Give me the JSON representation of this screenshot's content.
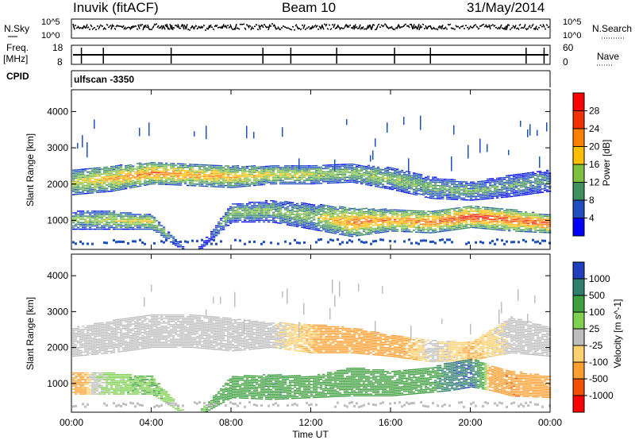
{
  "header": {
    "station": "Inuvik (fitACF)",
    "beam": "Beam 10",
    "date": "31/May/2014"
  },
  "noise_panel": {
    "left_label": "N.Sky",
    "left_ticks": [
      "10^5",
      "10^0"
    ],
    "right_label": "N.Search",
    "right_ticks": [
      "10^5",
      "10^0"
    ]
  },
  "freq_panel": {
    "left_label": "Freq.",
    "left_unit": "[MHz]",
    "left_ticks": [
      "18",
      "8"
    ],
    "right_label": "Nave",
    "right_ticks": [
      "60",
      "0"
    ]
  },
  "cpid": {
    "label": "CPID",
    "value": "ulfscan -3350"
  },
  "chart_data": [
    {
      "type": "heatmap",
      "name": "power",
      "ylabel": "Slant Range [km]",
      "ylim": [
        200,
        4600
      ],
      "yticks": [
        "1000",
        "2000",
        "3000",
        "4000"
      ],
      "colorbar": {
        "label": "Power [dB]",
        "ticks": [
          "28",
          "24",
          "20",
          "16",
          "12",
          "8",
          "4"
        ],
        "colors": [
          "#ff0000",
          "#f03000",
          "#ff7f00",
          "#ffbf00",
          "#7fbf3f",
          "#3f8f5f",
          "#1f4fbf",
          "#0000ff"
        ]
      },
      "bands": [
        {
          "t": [
            0,
            2,
            4,
            6,
            8,
            10,
            12,
            14,
            16,
            18,
            20,
            22,
            24
          ],
          "center_km": [
            2050,
            2150,
            2300,
            2250,
            2200,
            2250,
            2250,
            2300,
            2150,
            1900,
            1800,
            1950,
            2100
          ],
          "width_km": [
            350,
            350,
            300,
            300,
            300,
            250,
            250,
            250,
            300,
            300,
            250,
            300,
            300
          ],
          "level_db": [
            16,
            20,
            24,
            22,
            20,
            18,
            16,
            14,
            14,
            12,
            12,
            10,
            10
          ]
        },
        {
          "t": [
            0,
            2,
            4,
            6,
            8,
            10,
            12,
            14,
            16,
            18,
            20,
            22,
            24
          ],
          "center_km": [
            1000,
            1000,
            950,
            0,
            1200,
            1250,
            1100,
            950,
            1000,
            950,
            1100,
            1000,
            900
          ],
          "width_km": [
            250,
            250,
            200,
            0,
            250,
            300,
            350,
            400,
            300,
            300,
            300,
            300,
            250
          ],
          "level_db": [
            14,
            16,
            18,
            0,
            14,
            12,
            14,
            24,
            22,
            24,
            28,
            26,
            26
          ]
        }
      ]
    },
    {
      "type": "heatmap",
      "name": "velocity",
      "xlabel": "Time UT",
      "x_ticks": [
        "00:00",
        "04:00",
        "08:00",
        "12:00",
        "16:00",
        "20:00",
        "00:00"
      ],
      "ylabel": "Slant Range [km]",
      "ylim": [
        200,
        4600
      ],
      "yticks": [
        "1000",
        "2000",
        "3000",
        "4000"
      ],
      "colorbar": {
        "label": "Velocity [m s^-1]",
        "ticks": [
          "1000",
          "500",
          "100",
          "25",
          "-25",
          "-100",
          "-500",
          "-1000"
        ],
        "colors": [
          "#1f3fbf",
          "#2f7f6f",
          "#3fa03f",
          "#7fd050",
          "#bebebe",
          "#ffd070",
          "#ff9f30",
          "#f05000",
          "#ff0000"
        ]
      },
      "bands": [
        {
          "t": [
            0,
            2,
            4,
            6,
            8,
            10,
            12,
            14,
            16,
            18,
            20,
            22,
            24
          ],
          "center_km": [
            2150,
            2300,
            2450,
            2450,
            2350,
            2350,
            2250,
            2200,
            2050,
            1900,
            1900,
            2350,
            2150
          ],
          "width_km": [
            400,
            450,
            450,
            450,
            450,
            350,
            400,
            350,
            300,
            300,
            250,
            500,
            400
          ],
          "value_ms": [
            0,
            0,
            0,
            0,
            0,
            0,
            -100,
            -300,
            -200,
            0,
            -100,
            0,
            0
          ]
        },
        {
          "t": [
            0,
            1,
            2,
            4,
            6,
            8,
            10,
            12,
            14,
            16,
            18,
            19,
            20,
            21,
            22,
            24
          ],
          "center_km": [
            1000,
            1000,
            1000,
            950,
            0,
            900,
            900,
            900,
            1050,
            1000,
            1100,
            1200,
            1300,
            1150,
            1000,
            900
          ],
          "width_km": [
            300,
            300,
            300,
            250,
            0,
            300,
            350,
            300,
            400,
            350,
            350,
            400,
            400,
            350,
            350,
            300
          ],
          "value_ms": [
            -300,
            0,
            50,
            100,
            0,
            300,
            400,
            300,
            300,
            200,
            300,
            800,
            900,
            -300,
            -400,
            -300
          ]
        }
      ]
    }
  ]
}
